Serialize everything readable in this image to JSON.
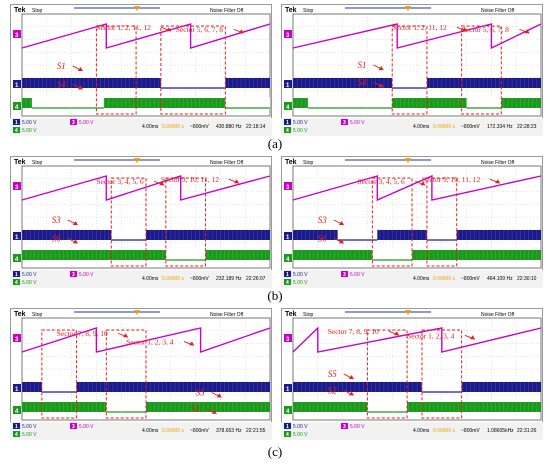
{
  "captions": [
    "(a)",
    "(b)",
    "(c)"
  ],
  "colors": {
    "screen_bg": "#ffffff",
    "grid": "#c8c8c8",
    "ch1": "#1a1a8c",
    "ch3": "#c800c8",
    "ch4": "#1a9a1a",
    "annotation": "#e61e1e",
    "trigger": "#f0a000",
    "header_bar": "#2030a0"
  },
  "panels": [
    {
      "id": "a-left",
      "header": {
        "brand": "Tek",
        "state": "Stop",
        "noise_filter": "Noise Filter Off"
      },
      "footer": {
        "ch1_scale": "5.00 V",
        "ch3_scale": "5.00 V",
        "ch4_scale": "5.00 V",
        "timebase": "4.00ms",
        "trigger_pos": "0.00000 s",
        "trigger_level": "~800mV",
        "frequency": "430.880 Hz",
        "time": "22:18:14"
      },
      "labels": [
        {
          "text": "Sector 1, 2, 11, 12",
          "kind": "sector"
        },
        {
          "text": "Sector 5, 6, 7, 8",
          "kind": "sector"
        },
        {
          "text": "S1",
          "kind": "switch"
        },
        {
          "text": "S4",
          "kind": "switch"
        }
      ],
      "boxes": [
        [
          0.3,
          0.46
        ],
        [
          0.56,
          0.82
        ]
      ],
      "pulse_off_ch1": [
        [
          0.56,
          0.82
        ]
      ],
      "pulse_off_ch4": [
        [
          0.04,
          0.33
        ],
        [
          0.82,
          1.0
        ]
      ],
      "saw_breaks": [
        0.34,
        0.68
      ]
    },
    {
      "id": "a-right",
      "header": {
        "brand": "Tek",
        "state": "Stop",
        "noise_filter": "Noise Filter Off"
      },
      "footer": {
        "ch1_scale": "5.00 V",
        "ch3_scale": "5.00 V",
        "ch4_scale": "5.00 V",
        "timebase": "4.00ms",
        "trigger_pos": "0.00000 s",
        "trigger_level": "~800mV",
        "frequency": "172.334 Hz",
        "time": "22:28:23"
      },
      "labels": [
        {
          "text": "Sector 1, 2, 11, 12",
          "kind": "sector"
        },
        {
          "text": "Sector 5, 6, 7, 8",
          "kind": "sector"
        },
        {
          "text": "S1",
          "kind": "switch"
        },
        {
          "text": "S4",
          "kind": "switch"
        }
      ],
      "boxes": [
        [
          0.4,
          0.54
        ],
        [
          0.68,
          0.84
        ]
      ],
      "pulse_off_ch1": [
        [
          0.4,
          0.54
        ]
      ],
      "pulse_off_ch4": [
        [
          0.06,
          0.4
        ],
        [
          0.7,
          0.84
        ]
      ],
      "saw_breaks": [
        0.42,
        0.8
      ]
    },
    {
      "id": "b-left",
      "header": {
        "brand": "Tek",
        "state": "Stop",
        "noise_filter": "Noise Filter Off"
      },
      "footer": {
        "ch1_scale": "5.00 V",
        "ch3_scale": "5.00 V",
        "ch4_scale": "5.00 V",
        "timebase": "4.00ms",
        "trigger_pos": "0.00000 s",
        "trigger_level": "~800mV",
        "frequency": "232.189 Hz",
        "time": "22:26:07"
      },
      "labels": [
        {
          "text": "Sector 3, 4, 5, 6",
          "kind": "sector"
        },
        {
          "text": "Sector 9, 10, 11, 12",
          "kind": "sector"
        },
        {
          "text": "S3",
          "kind": "switch"
        },
        {
          "text": "S6",
          "kind": "switch"
        }
      ],
      "boxes": [
        [
          0.36,
          0.5
        ],
        [
          0.58,
          0.74
        ]
      ],
      "pulse_off_ch1": [
        [
          0.36,
          0.5
        ]
      ],
      "pulse_off_ch4": [
        [
          0.58,
          0.74
        ]
      ],
      "saw_breaks": [
        0.34,
        0.64
      ]
    },
    {
      "id": "b-right",
      "header": {
        "brand": "Tek",
        "state": "Stop",
        "noise_filter": "Noise Filter Off"
      },
      "footer": {
        "ch1_scale": "5.00 V",
        "ch3_scale": "5.00 V",
        "ch4_scale": "5.00 V",
        "timebase": "4.00ms",
        "trigger_pos": "0.00000 s",
        "trigger_level": "~800mV",
        "frequency": "464.109 Hz",
        "time": "22:30:10"
      },
      "labels": [
        {
          "text": "Sector 3, 4, 5, 6",
          "kind": "sector"
        },
        {
          "text": "Sector 9, 10, 11, 12",
          "kind": "sector"
        },
        {
          "text": "S3",
          "kind": "switch"
        },
        {
          "text": "S6",
          "kind": "switch"
        }
      ],
      "boxes": [
        [
          0.32,
          0.48
        ],
        [
          0.54,
          0.66
        ]
      ],
      "pulse_off_ch1": [
        [
          0.18,
          0.34
        ],
        [
          0.54,
          0.66
        ]
      ],
      "pulse_off_ch4": [
        [
          0.32,
          0.48
        ]
      ],
      "saw_breaks": [
        0.34,
        0.56
      ]
    },
    {
      "id": "c-left",
      "header": {
        "brand": "Tek",
        "state": "Stop",
        "noise_filter": "Noise Filter Off"
      },
      "footer": {
        "ch1_scale": "5.00 V",
        "ch3_scale": "5.00 V",
        "ch4_scale": "5.00 V",
        "timebase": "4.00ms",
        "trigger_pos": "0.00000 s",
        "trigger_level": "~800mV",
        "frequency": "378.653 Hz",
        "time": "22:21:55"
      },
      "labels": [
        {
          "text": "Sector 7, 8, 9, 10",
          "kind": "sector"
        },
        {
          "text": "Sector 1, 2, 3, 4",
          "kind": "sector"
        },
        {
          "text": "S5",
          "kind": "switch"
        },
        {
          "text": "S2",
          "kind": "switch"
        }
      ],
      "boxes": [
        [
          0.08,
          0.22
        ],
        [
          0.34,
          0.5
        ]
      ],
      "pulse_off_ch1": [
        [
          0.08,
          0.22
        ]
      ],
      "pulse_off_ch4": [
        [
          0.34,
          0.5
        ]
      ],
      "saw_breaks": [
        0.3,
        0.72
      ]
    },
    {
      "id": "c-right",
      "header": {
        "brand": "Tek",
        "state": "Stop",
        "noise_filter": "Noise Filter Off"
      },
      "footer": {
        "ch1_scale": "5.00 V",
        "ch3_scale": "5.00 V",
        "ch4_scale": "5.00 V",
        "timebase": "4.00ms",
        "trigger_pos": "0.00000 s",
        "trigger_level": "~800mV",
        "frequency": "1.08605kHz",
        "time": "22:31:26"
      },
      "labels": [
        {
          "text": "Sector 7, 8, 9, 10",
          "kind": "sector"
        },
        {
          "text": "Sector 1, 2, 3, 4",
          "kind": "sector"
        },
        {
          "text": "S5",
          "kind": "switch"
        },
        {
          "text": "S2",
          "kind": "switch"
        }
      ],
      "boxes": [
        [
          0.3,
          0.46
        ],
        [
          0.52,
          0.68
        ]
      ],
      "pulse_off_ch1": [
        [
          0.52,
          0.68
        ]
      ],
      "pulse_off_ch4": [
        [
          0.3,
          0.46
        ]
      ],
      "saw_breaks": [
        0.1,
        0.6
      ]
    }
  ]
}
